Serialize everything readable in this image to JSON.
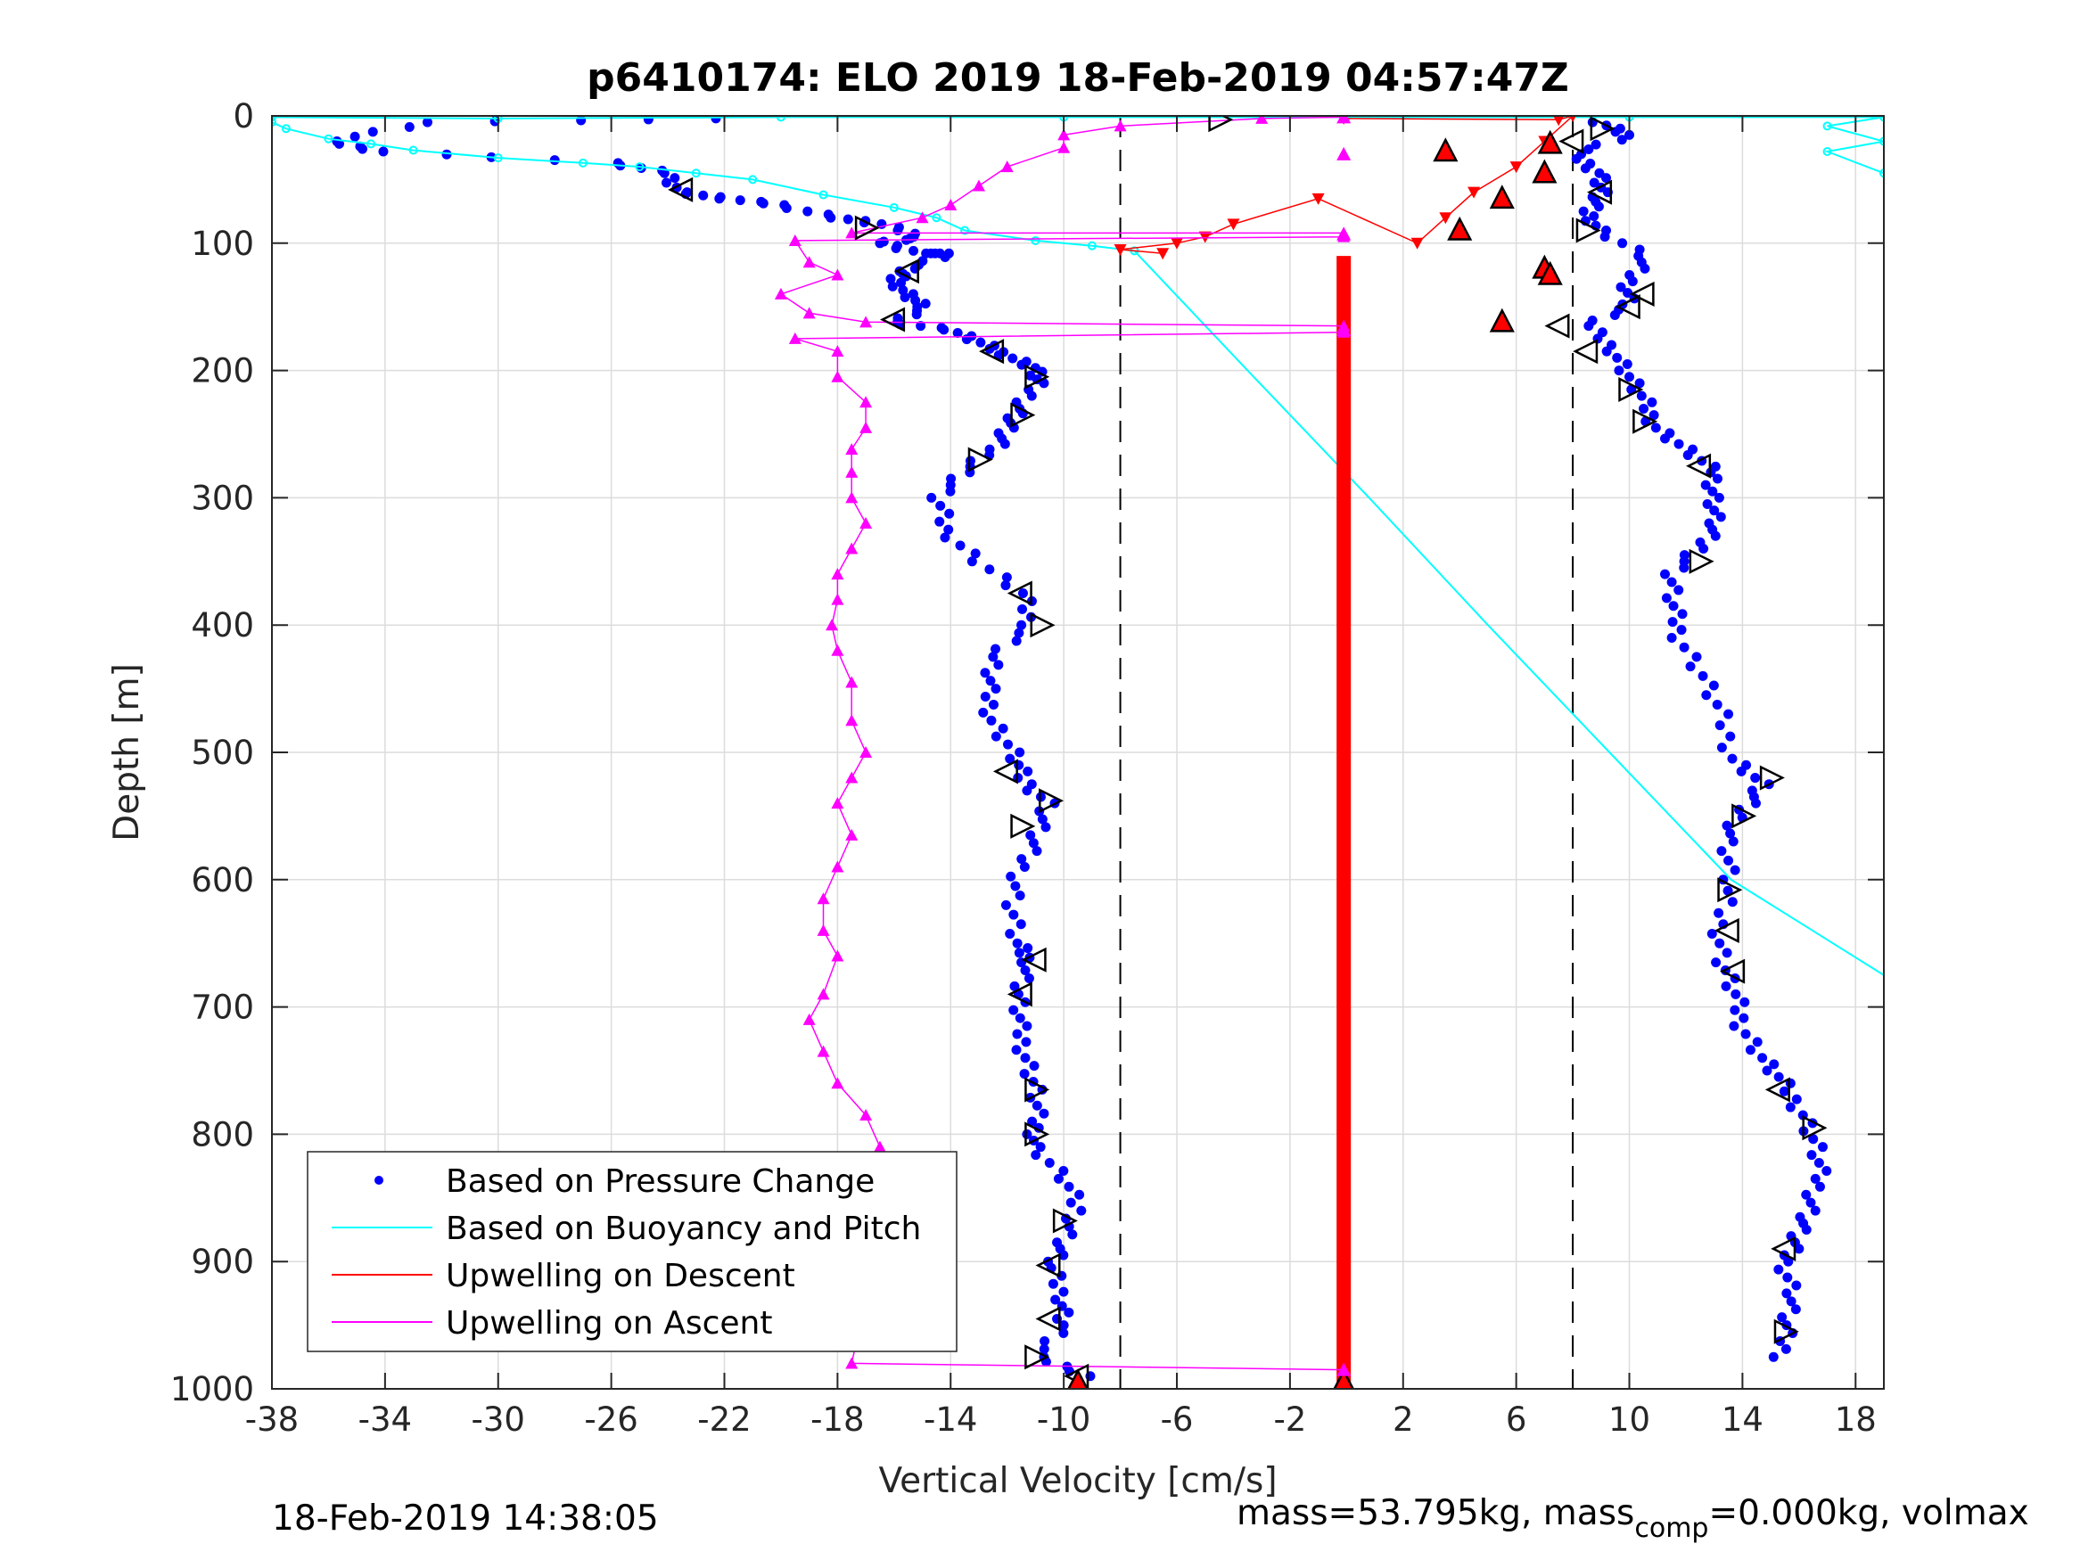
{
  "figure": {
    "footer_left": "18-Feb-2019 14:38:05",
    "footer_right_prefix": "mass=53.795kg, mass",
    "footer_right_sub": "comp",
    "footer_right_suffix": "=0.000kg, volmax"
  },
  "chart_data": {
    "type": "scatter",
    "title": "p6410174: ELO 2019 18-Feb-2019 04:57:47Z",
    "xlabel": "Vertical Velocity [cm/s]",
    "ylabel": "Depth [m]",
    "xlim": [
      -38,
      19
    ],
    "ylim": [
      0,
      1000
    ],
    "y_reversed": true,
    "grid": true,
    "legend_position": "bottom-left",
    "xticks": [
      -38,
      -34,
      -30,
      -26,
      -22,
      -18,
      -14,
      -10,
      -6,
      -2,
      2,
      6,
      10,
      14,
      18
    ],
    "yticks": [
      0,
      100,
      200,
      300,
      400,
      500,
      600,
      700,
      800,
      900,
      1000
    ],
    "threshold_lines": [
      -8,
      8
    ],
    "colors": {
      "pressure": "#0000ff",
      "buoyancy": "#00ffff",
      "upwelling_descent": "#ff0000",
      "upwelling_ascent": "#ff00ff",
      "threshold": "#000000"
    },
    "series": [
      {
        "name": "Based on Pressure Change",
        "key": "pressure_descent",
        "style": "dots",
        "points": [
          [
            -22,
            2
          ],
          [
            -32.5,
            5
          ],
          [
            -36,
            20
          ],
          [
            -34,
            28
          ],
          [
            -26,
            37
          ],
          [
            -24,
            45
          ],
          [
            -23.5,
            60
          ],
          [
            -22,
            65
          ],
          [
            -20,
            70
          ],
          [
            -18,
            80
          ],
          [
            -16.5,
            85
          ],
          [
            -15,
            95
          ],
          [
            -16.5,
            100
          ],
          [
            -15,
            108
          ],
          [
            -14,
            108
          ],
          [
            -15.5,
            120
          ],
          [
            -16,
            128
          ],
          [
            -15.5,
            140
          ],
          [
            -15,
            150
          ],
          [
            -16,
            162
          ],
          [
            -14,
            168
          ],
          [
            -13,
            178
          ],
          [
            -12,
            188
          ],
          [
            -11,
            198
          ],
          [
            -11,
            210
          ],
          [
            -11.5,
            230
          ],
          [
            -12,
            245
          ],
          [
            -12.5,
            262
          ],
          [
            -13.5,
            280
          ],
          [
            -14.5,
            300
          ],
          [
            -14.2,
            325
          ],
          [
            -13,
            350
          ],
          [
            -11.5,
            375
          ],
          [
            -11.2,
            400
          ],
          [
            -12.5,
            425
          ],
          [
            -12.7,
            450
          ],
          [
            -12.5,
            475
          ],
          [
            -11.8,
            500
          ],
          [
            -11.5,
            520
          ],
          [
            -10.5,
            540
          ],
          [
            -11,
            565
          ],
          [
            -11.5,
            590
          ],
          [
            -11.8,
            620
          ],
          [
            -11.7,
            650
          ],
          [
            -11.2,
            665
          ],
          [
            -11.6,
            690
          ],
          [
            -11.6,
            715
          ],
          [
            -11.3,
            740
          ],
          [
            -11,
            765
          ],
          [
            -11,
            790
          ],
          [
            -11,
            810
          ],
          [
            -10,
            835
          ],
          [
            -9.5,
            860
          ],
          [
            -10,
            885
          ],
          [
            -10.5,
            905
          ],
          [
            -10,
            930
          ],
          [
            -10,
            950
          ],
          [
            -11,
            975
          ],
          [
            -9,
            990
          ]
        ]
      },
      {
        "name": "Based on Pressure Change",
        "key": "pressure_ascent",
        "style": "dots",
        "points": [
          [
            9,
            5
          ],
          [
            10,
            15
          ],
          [
            8,
            30
          ],
          [
            9,
            45
          ],
          [
            9,
            60
          ],
          [
            8.5,
            75
          ],
          [
            9,
            90
          ],
          [
            10.5,
            110
          ],
          [
            10,
            130
          ],
          [
            10,
            148
          ],
          [
            8.5,
            165
          ],
          [
            9.5,
            185
          ],
          [
            10,
            205
          ],
          [
            10.5,
            225
          ],
          [
            11,
            245
          ],
          [
            12,
            262
          ],
          [
            13,
            280
          ],
          [
            13,
            300
          ],
          [
            13,
            320
          ],
          [
            12.5,
            340
          ],
          [
            11.5,
            360
          ],
          [
            11.5,
            385
          ],
          [
            11.8,
            410
          ],
          [
            12.6,
            440
          ],
          [
            13.2,
            470
          ],
          [
            13.7,
            505
          ],
          [
            14.7,
            525
          ],
          [
            14,
            545
          ],
          [
            13.5,
            570
          ],
          [
            13.5,
            600
          ],
          [
            13.2,
            635
          ],
          [
            13.3,
            665
          ],
          [
            13.7,
            690
          ],
          [
            14,
            715
          ],
          [
            14.7,
            740
          ],
          [
            15.4,
            760
          ],
          [
            16.2,
            785
          ],
          [
            16.6,
            810
          ],
          [
            16.7,
            835
          ],
          [
            16.4,
            860
          ],
          [
            15.9,
            880
          ],
          [
            15.5,
            900
          ],
          [
            15.8,
            925
          ],
          [
            15.5,
            950
          ],
          [
            15.4,
            975
          ]
        ]
      },
      {
        "name": "Based on Buoyancy and Pitch",
        "key": "buoyancy",
        "style": "line",
        "points": [
          [
            -38,
            5
          ],
          [
            -37.5,
            10
          ],
          [
            -36,
            18
          ],
          [
            -34.5,
            22
          ],
          [
            -33,
            27
          ],
          [
            -30,
            33
          ],
          [
            -27,
            37
          ],
          [
            -25,
            40
          ],
          [
            -23,
            45
          ],
          [
            -21,
            50
          ],
          [
            -18.5,
            62
          ],
          [
            -16,
            72
          ],
          [
            -14.5,
            80
          ],
          [
            -13.5,
            90
          ],
          [
            -11,
            98
          ],
          [
            -9,
            102
          ],
          [
            -7.5,
            106
          ],
          [
            -3.5,
            200
          ],
          [
            0.8,
            300
          ],
          [
            5,
            400
          ],
          [
            9.3,
            500
          ],
          [
            13.6,
            600
          ],
          [
            19,
            675
          ]
        ]
      },
      {
        "name": "Based on Buoyancy and Pitch",
        "key": "buoyancy_surface",
        "style": "line",
        "points": [
          [
            -38,
            1
          ],
          [
            -30,
            2
          ],
          [
            -20,
            1
          ],
          [
            -10,
            1
          ],
          [
            0,
            1
          ],
          [
            10,
            1
          ],
          [
            19,
            1
          ],
          [
            17,
            8
          ],
          [
            19,
            20
          ],
          [
            17,
            28
          ],
          [
            19,
            45
          ]
        ]
      },
      {
        "name": "Upwelling on Descent",
        "key": "upwelling_descent",
        "style": "line",
        "points": [
          [
            -0.1,
            2
          ],
          [
            7.5,
            3
          ],
          [
            8,
            0
          ],
          [
            7,
            20
          ],
          [
            6,
            40
          ],
          [
            4.5,
            60
          ],
          [
            3.5,
            80
          ],
          [
            2.5,
            100
          ],
          [
            -1,
            65
          ],
          [
            -4,
            85
          ],
          [
            -5,
            95
          ],
          [
            -6,
            100
          ],
          [
            -8,
            105
          ],
          [
            -6.5,
            108
          ],
          [
            -0.1,
            110
          ],
          [
            -0.1,
            1000
          ]
        ]
      },
      {
        "name": "Upwelling on Ascent",
        "key": "upwelling_ascent",
        "style": "line",
        "points": [
          [
            -0.1,
            1
          ],
          [
            -3,
            2
          ],
          [
            -8,
            8
          ],
          [
            -10,
            15
          ],
          [
            -10,
            25
          ],
          [
            -12,
            40
          ],
          [
            -13,
            55
          ],
          [
            -14,
            70
          ],
          [
            -15,
            80
          ],
          [
            -17.5,
            92
          ],
          [
            -0.1,
            92
          ],
          [
            -0.1,
            95
          ],
          [
            -19.5,
            98
          ],
          [
            -19,
            115
          ],
          [
            -18,
            125
          ],
          [
            -20,
            140
          ],
          [
            -19,
            155
          ],
          [
            -17,
            162
          ],
          [
            -0.1,
            165
          ],
          [
            -0.1,
            170
          ],
          [
            -19.5,
            175
          ],
          [
            -18,
            185
          ],
          [
            -18,
            205
          ],
          [
            -17,
            225
          ],
          [
            -17,
            245
          ],
          [
            -17.5,
            262
          ],
          [
            -17.5,
            280
          ],
          [
            -17.5,
            300
          ],
          [
            -17,
            320
          ],
          [
            -17.5,
            340
          ],
          [
            -18,
            360
          ],
          [
            -18,
            380
          ],
          [
            -18.2,
            400
          ],
          [
            -18,
            420
          ],
          [
            -17.5,
            445
          ],
          [
            -17.5,
            475
          ],
          [
            -17,
            500
          ],
          [
            -17.5,
            520
          ],
          [
            -18,
            540
          ],
          [
            -17.5,
            565
          ],
          [
            -18,
            590
          ],
          [
            -18.5,
            615
          ],
          [
            -18.5,
            640
          ],
          [
            -18,
            660
          ],
          [
            -18.5,
            690
          ],
          [
            -19,
            710
          ],
          [
            -18.5,
            735
          ],
          [
            -18,
            760
          ],
          [
            -17,
            785
          ],
          [
            -16.5,
            810
          ],
          [
            -16.5,
            840
          ],
          [
            -16.5,
            865
          ],
          [
            -16.5,
            885
          ],
          [
            -16.8,
            905
          ],
          [
            -17,
            925
          ],
          [
            -17,
            945
          ],
          [
            -17.3,
            960
          ],
          [
            -17.5,
            980
          ],
          [
            -0.1,
            985
          ]
        ]
      }
    ],
    "markers": {
      "triangles_right": [
        [
          -4.5,
          3
        ],
        [
          9,
          10
        ],
        [
          -17,
          88
        ],
        [
          8.5,
          90
        ],
        [
          -11.5,
          235
        ],
        [
          -11,
          205
        ],
        [
          -13,
          270
        ],
        [
          10,
          215
        ],
        [
          10.5,
          240
        ],
        [
          12.5,
          350
        ],
        [
          -10.8,
          400
        ],
        [
          -10.5,
          538
        ],
        [
          -11.5,
          558
        ],
        [
          15,
          520
        ],
        [
          14,
          550
        ],
        [
          13.5,
          608
        ],
        [
          -11,
          765
        ],
        [
          -11,
          800
        ],
        [
          -10,
          868
        ],
        [
          15.5,
          955
        ],
        [
          -11,
          975
        ],
        [
          16.5,
          795
        ]
      ],
      "triangles_left": [
        [
          -23.5,
          58
        ],
        [
          -15.5,
          122
        ],
        [
          -16,
          160
        ],
        [
          7.5,
          165
        ],
        [
          8.5,
          185
        ],
        [
          10.5,
          140
        ],
        [
          10,
          150
        ],
        [
          9,
          60
        ],
        [
          8,
          20
        ],
        [
          -12.5,
          185
        ],
        [
          12.5,
          275
        ],
        [
          -11.5,
          375
        ],
        [
          -12,
          515
        ],
        [
          -11.5,
          690
        ],
        [
          -11,
          663
        ],
        [
          13.5,
          640
        ],
        [
          13.7,
          672
        ],
        [
          15.3,
          765
        ],
        [
          15.5,
          890
        ],
        [
          -10.5,
          903
        ],
        [
          -10.5,
          945
        ],
        [
          -9.5,
          990
        ]
      ],
      "red_up_triangles": [
        [
          3.5,
          28
        ],
        [
          7.2,
          22
        ],
        [
          7,
          45
        ],
        [
          5.5,
          65
        ],
        [
          4,
          90
        ],
        [
          7,
          120
        ],
        [
          7.2,
          125
        ],
        [
          5.5,
          162
        ],
        [
          -9.5,
          995
        ],
        [
          -0.1,
          995
        ]
      ],
      "magenta_triangles": [
        [
          -0.1,
          1
        ],
        [
          -0.1,
          30
        ],
        [
          -0.1,
          93
        ],
        [
          -0.1,
          168
        ],
        [
          -0.1,
          985
        ]
      ]
    }
  },
  "legend": {
    "items": [
      {
        "label": "Based on Pressure Change",
        "style": "dot",
        "color": "#0000ff"
      },
      {
        "label": "Based on Buoyancy and Pitch",
        "style": "line",
        "color": "#00ffff"
      },
      {
        "label": "Upwelling on Descent",
        "style": "line",
        "color": "#ff0000"
      },
      {
        "label": "Upwelling on Ascent",
        "style": "line",
        "color": "#ff00ff"
      }
    ]
  }
}
